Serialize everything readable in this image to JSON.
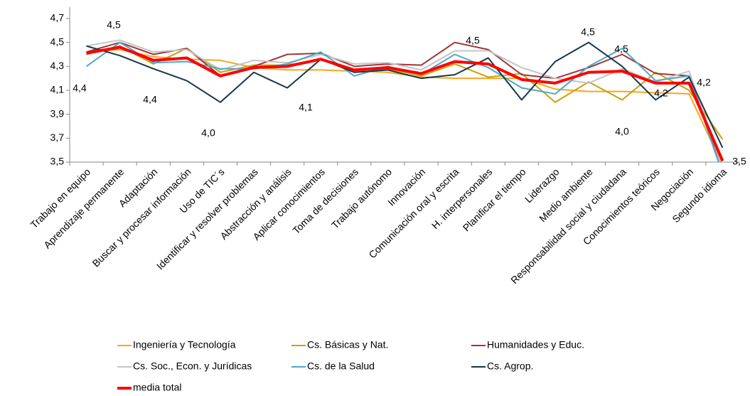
{
  "chart_data": {
    "type": "line",
    "categories": [
      "Trabajo en equipo",
      "Aprendizaje permanente",
      "Adaptación",
      "Buscar y procesar información",
      "Uso de TIC´s",
      "Identificar y resolver problemas",
      "Abstracción y análisis",
      "Aplicar conocimientos",
      "Toma de decisiones",
      "Trabajo autónomo",
      "Innovación",
      "Comunicación oral y escrita",
      "H. interpersonales",
      "Planificar el tiempo",
      "Liderazgo",
      "Medio ambiente",
      "Responsabilidad social y ciudadana",
      "Conocimientos teóricos",
      "Negociación",
      "Segundo idioma"
    ],
    "series": [
      {
        "name": "Ingeniería y Tecnología",
        "color": "#f5a623",
        "values": [
          4.42,
          4.44,
          4.38,
          4.36,
          4.35,
          4.29,
          4.27,
          4.27,
          4.26,
          4.25,
          4.21,
          4.2,
          4.2,
          4.2,
          4.11,
          4.09,
          4.09,
          4.08,
          4.07,
          3.47
        ]
      },
      {
        "name": "Cs. Básicas y Nat.",
        "color": "#c9a10a",
        "values": [
          4.4,
          4.47,
          4.32,
          4.45,
          4.25,
          4.31,
          4.31,
          4.36,
          4.27,
          4.28,
          4.22,
          4.32,
          4.21,
          4.24,
          4.0,
          4.17,
          4.02,
          4.25,
          4.1,
          3.69
        ]
      },
      {
        "name": "Humanidades y Educ.",
        "color": "#a0363a",
        "values": [
          4.42,
          4.5,
          4.4,
          4.45,
          4.22,
          4.3,
          4.4,
          4.41,
          4.3,
          4.32,
          4.31,
          4.5,
          4.44,
          4.23,
          4.2,
          4.29,
          4.4,
          4.24,
          4.22,
          3.45
        ]
      },
      {
        "name": "Cs. Soc., Econ. y Jurídicas",
        "color": "#c4c4c4",
        "values": [
          4.47,
          4.52,
          4.42,
          4.44,
          4.27,
          4.35,
          4.33,
          4.4,
          4.32,
          4.33,
          4.27,
          4.43,
          4.43,
          4.29,
          4.2,
          4.16,
          4.28,
          4.17,
          4.26,
          3.45
        ]
      },
      {
        "name": "Cs. de la Salud",
        "color": "#4fa8c8",
        "values": [
          4.3,
          4.5,
          4.33,
          4.34,
          4.28,
          4.28,
          4.32,
          4.42,
          4.22,
          4.3,
          4.23,
          4.4,
          4.29,
          4.12,
          4.07,
          4.3,
          4.45,
          4.18,
          4.22,
          3.4
        ]
      },
      {
        "name": "Cs. Agrop.",
        "color": "#17374a",
        "values": [
          4.47,
          4.39,
          4.28,
          4.18,
          4.0,
          4.25,
          4.12,
          4.36,
          4.25,
          4.27,
          4.2,
          4.23,
          4.37,
          4.02,
          4.34,
          4.5,
          4.3,
          4.02,
          4.21,
          3.62
        ]
      },
      {
        "name": "media total",
        "color": "#ff0000",
        "values": [
          4.41,
          4.46,
          4.35,
          4.37,
          4.22,
          4.29,
          4.3,
          4.36,
          4.27,
          4.29,
          4.24,
          4.34,
          4.32,
          4.19,
          4.16,
          4.25,
          4.26,
          4.16,
          4.16,
          3.51
        ]
      }
    ],
    "ylim": [
      3.5,
      4.7
    ],
    "yticks": [
      {
        "value": 3.5,
        "label": "3,5"
      },
      {
        "value": 3.7,
        "label": "3,7"
      },
      {
        "value": 3.9,
        "label": "3,9"
      },
      {
        "value": 4.1,
        "label": "4,1"
      },
      {
        "value": 4.3,
        "label": "4,3"
      },
      {
        "value": 4.5,
        "label": "4,5"
      },
      {
        "value": 4.7,
        "label": "4,7"
      }
    ],
    "annotations": [
      {
        "text": "4,4"
      },
      {
        "text": "4,5"
      },
      {
        "text": "4,4"
      },
      {
        "text": "4,0"
      },
      {
        "text": "4,1"
      },
      {
        "text": "4,5"
      },
      {
        "text": "4,5"
      },
      {
        "text": "4,5"
      },
      {
        "text": "4,0"
      },
      {
        "text": "4,2"
      },
      {
        "text": "4,2"
      },
      {
        "text": "3,5"
      }
    ]
  }
}
